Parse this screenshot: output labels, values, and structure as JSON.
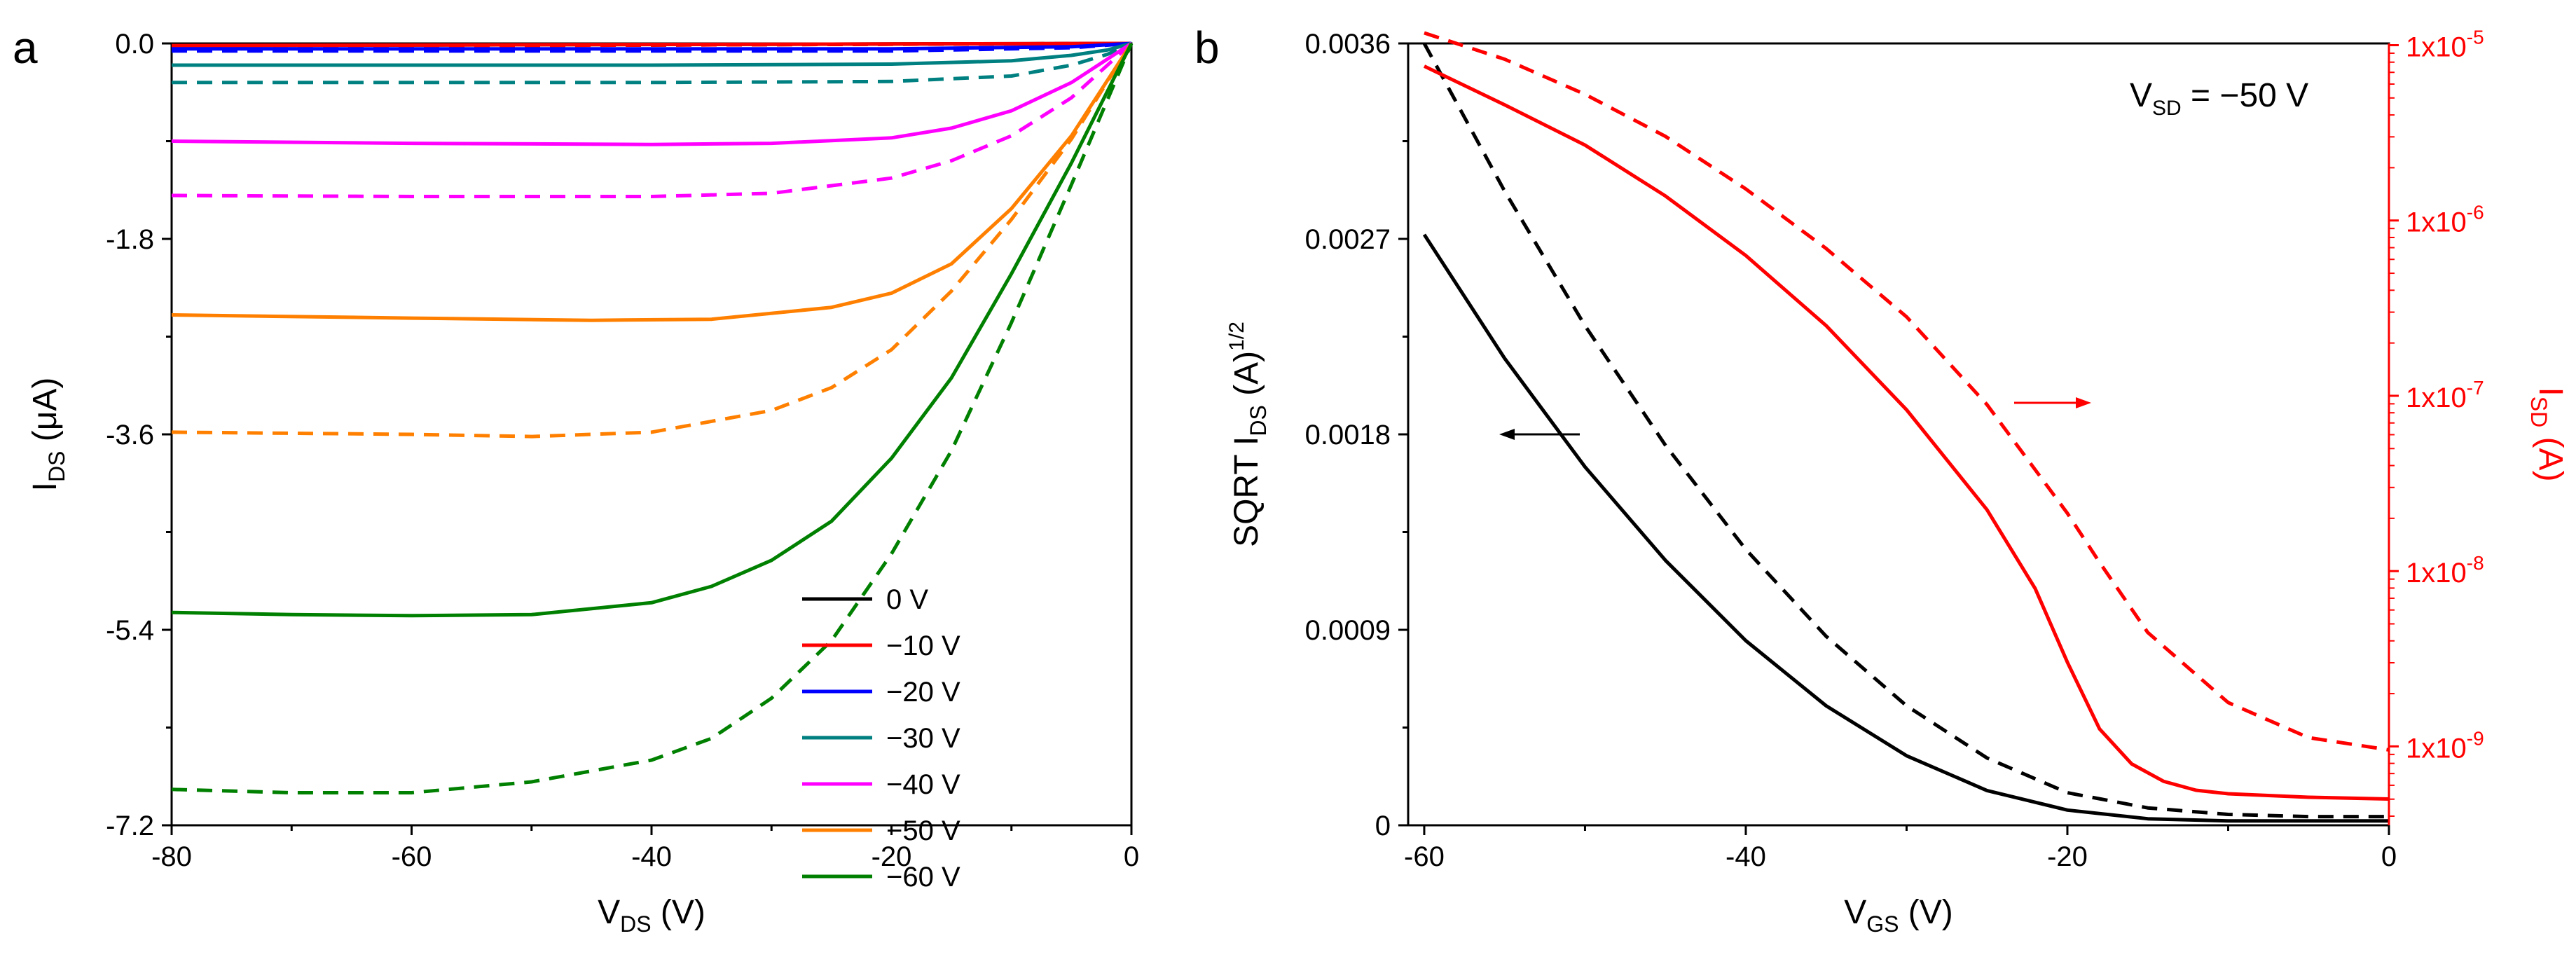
{
  "colors": {
    "0": "#000000",
    "-10": "#ff0000",
    "-20": "#0000ff",
    "-30": "#008080",
    "-40": "#ff00ff",
    "-50": "#ff8000",
    "-60": "#008000",
    "black": "#000000",
    "red": "#ff0000"
  },
  "chart_data": [
    {
      "type": "line",
      "panel": "a",
      "xlabel_main": "V",
      "xlabel_sub": "DS",
      "xlabel_unit": " (V)",
      "ylabel_main": "I",
      "ylabel_sub": "DS",
      "ylabel_unit": " (μA)",
      "xlim": [
        -80,
        0
      ],
      "ylim": [
        -7.2,
        0.0
      ],
      "xticks": [
        -80,
        -60,
        -40,
        -20,
        0
      ],
      "xtick_labels": [
        "-80",
        "-60",
        "-40",
        "-20",
        "0"
      ],
      "yticks": [
        0.0,
        -1.8,
        -3.6,
        -5.4,
        -7.2
      ],
      "ytick_labels": [
        "0.0",
        "-1.8",
        "-3.6",
        "-5.4",
        "-7.2"
      ],
      "legend": {
        "placement": "lower-right",
        "entries": [
          {
            "label": "0 V",
            "color_key": "0"
          },
          {
            "label": "−10 V",
            "color_key": "-10"
          },
          {
            "label": "−20 V",
            "color_key": "-20"
          },
          {
            "label": "−30 V",
            "color_key": "-30"
          },
          {
            "label": "−40 V",
            "color_key": "-40"
          },
          {
            "label": "−50 V",
            "color_key": "-50"
          },
          {
            "label": "−60 V",
            "color_key": "-60"
          }
        ]
      },
      "series": [
        {
          "name": "0 V solid",
          "color_key": "0",
          "dash": false,
          "x": [
            -80,
            0
          ],
          "y": [
            -0.02,
            0.0
          ]
        },
        {
          "name": "0 V dashed",
          "color_key": "0",
          "dash": true,
          "x": [
            -80,
            0
          ],
          "y": [
            -0.03,
            0.0
          ]
        },
        {
          "name": "−10 V solid",
          "color_key": "-10",
          "dash": false,
          "x": [
            -80,
            0
          ],
          "y": [
            -0.02,
            0.0
          ]
        },
        {
          "name": "−10 V dashed",
          "color_key": "-10",
          "dash": true,
          "x": [
            -80,
            0
          ],
          "y": [
            -0.03,
            0.0
          ]
        },
        {
          "name": "−20 V solid",
          "color_key": "-20",
          "dash": false,
          "x": [
            -80,
            -20,
            -5,
            0
          ],
          "y": [
            -0.05,
            -0.05,
            -0.03,
            0.0
          ]
        },
        {
          "name": "−20 V dashed",
          "color_key": "-20",
          "dash": true,
          "x": [
            -80,
            -20,
            -5,
            0
          ],
          "y": [
            -0.07,
            -0.07,
            -0.04,
            0.0
          ]
        },
        {
          "name": "−30 V solid",
          "color_key": "-30",
          "dash": false,
          "x": [
            -80,
            -40,
            -20,
            -10,
            -5,
            -2,
            0
          ],
          "y": [
            -0.2,
            -0.2,
            -0.19,
            -0.16,
            -0.11,
            -0.06,
            0.0
          ]
        },
        {
          "name": "−30 V dashed",
          "color_key": "-30",
          "dash": true,
          "x": [
            -80,
            -40,
            -20,
            -10,
            -5,
            -2,
            0
          ],
          "y": [
            -0.36,
            -0.36,
            -0.35,
            -0.3,
            -0.2,
            -0.1,
            0.0
          ]
        },
        {
          "name": "−40 V solid",
          "color_key": "-40",
          "dash": false,
          "x": [
            -80,
            -60,
            -40,
            -30,
            -20,
            -15,
            -10,
            -5,
            0
          ],
          "y": [
            -0.9,
            -0.92,
            -0.93,
            -0.92,
            -0.87,
            -0.78,
            -0.62,
            -0.36,
            0.0
          ]
        },
        {
          "name": "−40 V dashed",
          "color_key": "-40",
          "dash": true,
          "x": [
            -80,
            -60,
            -40,
            -30,
            -20,
            -15,
            -10,
            -5,
            0
          ],
          "y": [
            -1.4,
            -1.41,
            -1.41,
            -1.38,
            -1.24,
            -1.08,
            -0.85,
            -0.5,
            0.0
          ]
        },
        {
          "name": "−50 V solid",
          "color_key": "-50",
          "dash": false,
          "x": [
            -80,
            -60,
            -45,
            -35,
            -25,
            -20,
            -15,
            -10,
            -5,
            0
          ],
          "y": [
            -2.5,
            -2.53,
            -2.55,
            -2.54,
            -2.43,
            -2.3,
            -2.03,
            -1.52,
            -0.85,
            0.0
          ]
        },
        {
          "name": "−50 V dashed",
          "color_key": "-50",
          "dash": true,
          "x": [
            -80,
            -60,
            -50,
            -40,
            -30,
            -25,
            -20,
            -15,
            -10,
            -5,
            0
          ],
          "y": [
            -3.58,
            -3.6,
            -3.62,
            -3.58,
            -3.38,
            -3.17,
            -2.82,
            -2.28,
            -1.62,
            -0.88,
            0.0
          ]
        },
        {
          "name": "−60 V solid",
          "color_key": "-60",
          "dash": false,
          "x": [
            -80,
            -70,
            -60,
            -50,
            -40,
            -35,
            -30,
            -25,
            -20,
            -15,
            -10,
            -5,
            0
          ],
          "y": [
            -5.24,
            -5.26,
            -5.27,
            -5.26,
            -5.15,
            -5.0,
            -4.76,
            -4.4,
            -3.82,
            -3.08,
            -2.12,
            -1.1,
            0.0
          ]
        },
        {
          "name": "−60 V dashed",
          "color_key": "-60",
          "dash": true,
          "x": [
            -80,
            -70,
            -60,
            -50,
            -40,
            -35,
            -30,
            -25,
            -20,
            -15,
            -10,
            -5,
            0
          ],
          "y": [
            -6.87,
            -6.9,
            -6.9,
            -6.8,
            -6.6,
            -6.4,
            -6.03,
            -5.5,
            -4.7,
            -3.75,
            -2.57,
            -1.3,
            0.0
          ]
        }
      ]
    },
    {
      "type": "line",
      "panel": "b",
      "annotation_main": "V",
      "annotation_sub": "SD",
      "annotation_rest": " = −50 V",
      "xlabel_main": "V",
      "xlabel_sub": "GS",
      "xlabel_unit": " (V)",
      "ylabel_left_main": "SQRT I",
      "ylabel_left_sub": "DS",
      "ylabel_left_unit": " (A)",
      "ylabel_left_sup": "1/2",
      "ylabel_right_main": "I",
      "ylabel_right_sub": "SD",
      "ylabel_right_unit": " (A)",
      "xlim": [
        -61,
        0
      ],
      "xticks": [
        -60,
        -40,
        -20,
        0
      ],
      "xtick_labels": [
        "-60",
        "-40",
        "-20",
        "0"
      ],
      "ylim_left": [
        0,
        0.0036
      ],
      "yticks_left": [
        0,
        0.0009,
        0.0018,
        0.0027,
        0.0036
      ],
      "ytick_labels_left": [
        "0",
        "0.0009",
        "0.0018",
        "0.0027",
        "0.0036"
      ],
      "ylim_right_log10": [
        -9.45,
        -4.99
      ],
      "yticks_right_log10": [
        -9,
        -8,
        -7,
        -6,
        -5
      ],
      "ytick_labels_right_base": "1x10",
      "ytick_labels_right_exp": [
        "-9",
        "-8",
        "-7",
        "-6",
        "-5"
      ],
      "series": [
        {
          "name": "SQRT I_DS solid",
          "axis": "left",
          "color_key": "black",
          "dash": false,
          "x": [
            -60,
            -55,
            -50,
            -45,
            -40,
            -35,
            -30,
            -25,
            -20,
            -15,
            -10,
            -5,
            0
          ],
          "y": [
            0.00272,
            0.00215,
            0.00165,
            0.00122,
            0.00085,
            0.00055,
            0.00032,
            0.00016,
            7e-05,
            3e-05,
            2e-05,
            2e-05,
            2e-05
          ]
        },
        {
          "name": "SQRT I_DS dashed",
          "axis": "left",
          "color_key": "black",
          "dash": true,
          "x": [
            -60,
            -55,
            -50,
            -45,
            -40,
            -35,
            -30,
            -25,
            -20,
            -15,
            -10,
            -5,
            0
          ],
          "y": [
            0.0036,
            0.00292,
            0.0023,
            0.00175,
            0.00127,
            0.00087,
            0.00055,
            0.00031,
            0.00015,
            8e-05,
            5e-05,
            4e-05,
            4e-05
          ]
        },
        {
          "name": "I_SD solid",
          "axis": "right",
          "color_key": "red",
          "dash": false,
          "x": [
            -60,
            -55,
            -50,
            -45,
            -40,
            -35,
            -30,
            -25,
            -22,
            -20,
            -18,
            -16,
            -14,
            -12,
            -10,
            -5,
            0
          ],
          "y_log10": [
            -5.12,
            -5.34,
            -5.57,
            -5.86,
            -6.2,
            -6.6,
            -7.08,
            -7.65,
            -8.1,
            -8.52,
            -8.9,
            -9.1,
            -9.2,
            -9.25,
            -9.27,
            -9.29,
            -9.3
          ]
        },
        {
          "name": "I_SD dashed",
          "axis": "right",
          "color_key": "red",
          "dash": true,
          "x": [
            -60,
            -55,
            -50,
            -45,
            -40,
            -35,
            -30,
            -25,
            -20,
            -18,
            -15,
            -10,
            -5,
            0
          ],
          "y_log10": [
            -4.93,
            -5.08,
            -5.28,
            -5.52,
            -5.82,
            -6.16,
            -6.55,
            -7.05,
            -7.67,
            -7.95,
            -8.35,
            -8.75,
            -8.95,
            -9.02
          ]
        }
      ]
    }
  ]
}
